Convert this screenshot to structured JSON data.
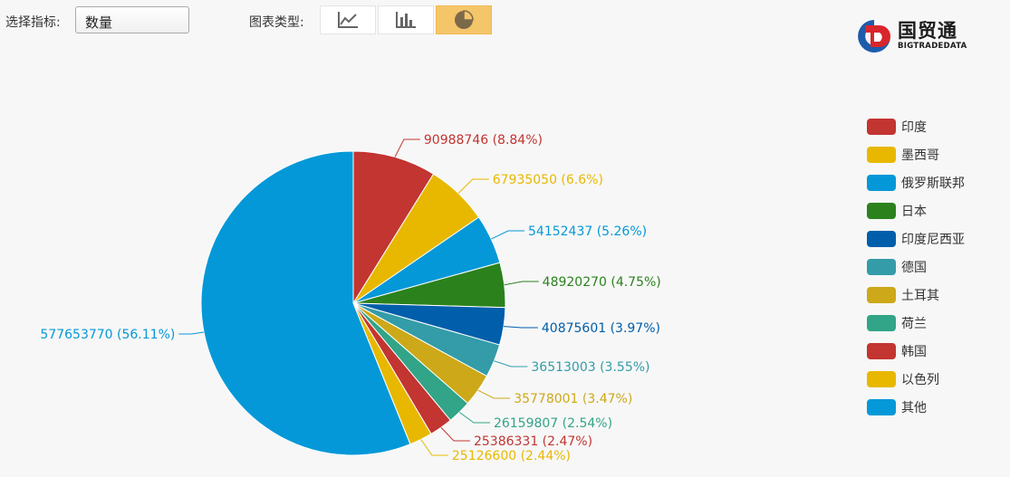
{
  "toolbar": {
    "metric_label": "选择指标:",
    "metric_value": "数量",
    "chart_type_label": "图表类型:",
    "chart_types": [
      {
        "name": "line-chart-icon",
        "active": false
      },
      {
        "name": "bar-chart-icon",
        "active": false
      },
      {
        "name": "pie-chart-icon",
        "active": true
      }
    ]
  },
  "logo": {
    "title": "国贸通",
    "subtitle": "BIGTRADEDATA"
  },
  "chart_data": {
    "type": "pie",
    "slices": [
      {
        "name": "印度",
        "value": 90988746,
        "percent": "8.84%",
        "color": "#c23531"
      },
      {
        "name": "墨西哥",
        "value": 67935050,
        "percent": "6.6%",
        "color": "#e8b800"
      },
      {
        "name": "俄罗斯联邦",
        "value": 54152437,
        "percent": "5.26%",
        "color": "#0598d8"
      },
      {
        "name": "日本",
        "value": 48920270,
        "percent": "4.75%",
        "color": "#2b821d"
      },
      {
        "name": "印度尼西亚",
        "value": 40875601,
        "percent": "3.97%",
        "color": "#005eaa"
      },
      {
        "name": "德国",
        "value": 36513003,
        "percent": "3.55%",
        "color": "#339ca8"
      },
      {
        "name": "土耳其",
        "value": 35778001,
        "percent": "3.47%",
        "color": "#cda819"
      },
      {
        "name": "荷兰",
        "value": 26159807,
        "percent": "2.54%",
        "color": "#32a487"
      },
      {
        "name": "韩国",
        "value": 25386331,
        "percent": "2.47%",
        "color": "#c23531"
      },
      {
        "name": "以色列",
        "value": 25126600,
        "percent": "2.44%",
        "color": "#e8b800"
      },
      {
        "name": "其他",
        "value": 577653770,
        "percent": "56.11%",
        "color": "#0598d8"
      }
    ],
    "legend_position": "right"
  }
}
